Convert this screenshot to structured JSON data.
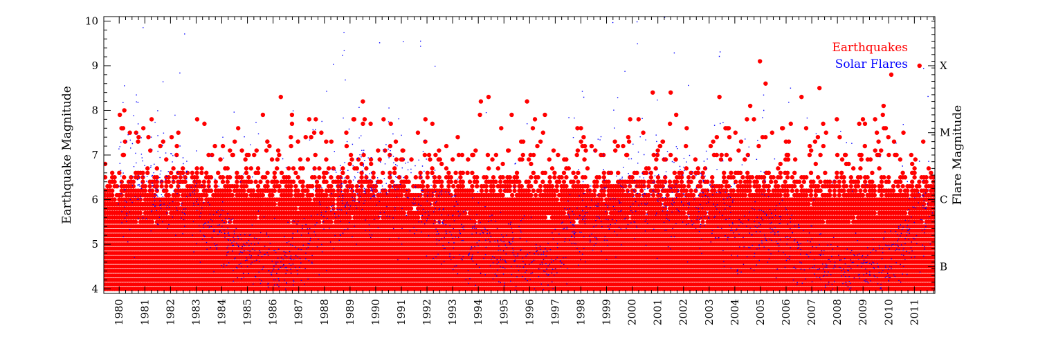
{
  "chart_data": {
    "type": "scatter",
    "title": "",
    "x_range": [
      1979.4,
      2011.8
    ],
    "y_range": [
      3.9,
      10.1
    ],
    "x_tick_labels": [
      "1980",
      "1981",
      "1982",
      "1983",
      "1984",
      "1985",
      "1986",
      "1987",
      "1988",
      "1989",
      "1990",
      "1991",
      "1992",
      "1993",
      "1994",
      "1995",
      "1996",
      "1997",
      "1998",
      "1999",
      "2000",
      "2001",
      "2002",
      "2003",
      "2004",
      "2005",
      "2006",
      "2007",
      "2008",
      "2009",
      "2010",
      "2011"
    ],
    "y_left_label": "Earthquake Magnitude",
    "y_left_ticks": [
      4,
      5,
      6,
      7,
      8,
      9,
      10
    ],
    "y_right_label": "Flare Magnitude",
    "y_right_ticks": [
      {
        "label": "B",
        "at": 4.5
      },
      {
        "label": "C",
        "at": 6.0
      },
      {
        "label": "M",
        "at": 7.5
      },
      {
        "label": "X",
        "at": 9.0
      }
    ],
    "legend_position": "top-right",
    "grid": false,
    "series": [
      {
        "name": "Earthquakes",
        "color": "#ff0000",
        "marker": "filled-circle",
        "description_points": "earthquakes of magnitude >= 4; dense band 4.0-6.6, sparse 7-9.1",
        "notable_events": [
          {
            "year": 1980.2,
            "mag": 8.0
          },
          {
            "year": 1986.3,
            "mag": 8.3
          },
          {
            "year": 1989.5,
            "mag": 8.2
          },
          {
            "year": 1994.1,
            "mag": 8.2
          },
          {
            "year": 1994.4,
            "mag": 8.3
          },
          {
            "year": 1995.9,
            "mag": 8.2
          },
          {
            "year": 2000.8,
            "mag": 8.4
          },
          {
            "year": 2001.5,
            "mag": 8.4
          },
          {
            "year": 2003.4,
            "mag": 8.3
          },
          {
            "year": 2004.6,
            "mag": 8.1
          },
          {
            "year": 2004.98,
            "mag": 9.1
          },
          {
            "year": 2005.2,
            "mag": 8.6
          },
          {
            "year": 2006.6,
            "mag": 8.3
          },
          {
            "year": 2007.3,
            "mag": 8.5
          },
          {
            "year": 2009.8,
            "mag": 8.1
          },
          {
            "year": 2010.1,
            "mag": 8.8
          },
          {
            "year": 2011.2,
            "mag": 9.0
          }
        ]
      },
      {
        "name": "Solar Flares",
        "color": "#0000ff",
        "marker": "small-dot",
        "activity_profile": [
          {
            "year": 1980.0,
            "level": 1.0
          },
          {
            "year": 1982.0,
            "level": 1.0
          },
          {
            "year": 1983.5,
            "level": 0.6
          },
          {
            "year": 1984.5,
            "level": 0.3
          },
          {
            "year": 1986.3,
            "level": 0.05
          },
          {
            "year": 1987.5,
            "level": 0.4
          },
          {
            "year": 1989.0,
            "level": 1.0
          },
          {
            "year": 1991.5,
            "level": 1.0
          },
          {
            "year": 1993.0,
            "level": 0.5
          },
          {
            "year": 1995.0,
            "level": 0.25
          },
          {
            "year": 1996.5,
            "level": 0.05
          },
          {
            "year": 1998.0,
            "level": 0.55
          },
          {
            "year": 2000.0,
            "level": 0.9
          },
          {
            "year": 2002.0,
            "level": 0.95
          },
          {
            "year": 2004.0,
            "level": 0.5
          },
          {
            "year": 2005.5,
            "level": 0.45
          },
          {
            "year": 2007.0,
            "level": 0.15
          },
          {
            "year": 2008.5,
            "level": 0.02
          },
          {
            "year": 2009.5,
            "level": 0.03
          },
          {
            "year": 2010.5,
            "level": 0.3
          },
          {
            "year": 2011.5,
            "level": 0.7
          }
        ]
      }
    ]
  }
}
